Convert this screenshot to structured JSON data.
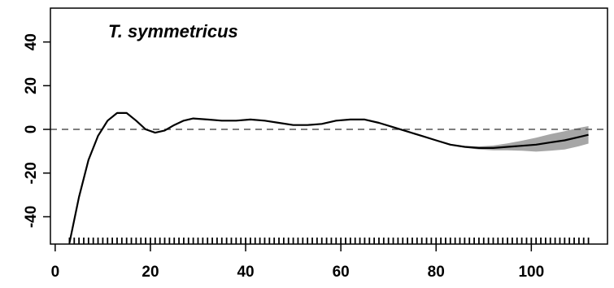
{
  "chart_data": {
    "type": "line",
    "title": "T. symmetricus",
    "xlabel": "",
    "ylabel": "",
    "xlim": [
      -1,
      116
    ],
    "ylim": [
      -52.5,
      55.5
    ],
    "x_ticks": [
      0,
      20,
      40,
      60,
      80,
      100
    ],
    "y_ticks": [
      -40,
      -20,
      0,
      20,
      40
    ],
    "reference_line": {
      "y": 0,
      "style": "dashed"
    },
    "grid": false,
    "colors": {
      "line": "#000000",
      "band": "#a6a6a6",
      "reference": "#555555"
    },
    "series": [
      {
        "x": [
          3,
          5,
          7,
          9,
          11,
          13,
          15,
          17,
          19,
          21,
          23,
          25,
          27,
          29,
          32,
          35,
          38,
          41,
          44,
          47,
          50,
          53,
          56,
          59,
          62,
          65,
          68,
          71,
          74,
          77,
          80,
          83,
          86,
          89,
          92,
          95,
          98,
          101,
          104,
          107,
          110,
          112
        ],
        "y": [
          -52,
          -31,
          -14,
          -3,
          4,
          7.5,
          7.5,
          4,
          0,
          -1.5,
          -0.5,
          2,
          4,
          5,
          4.5,
          4,
          4,
          4.5,
          4,
          3,
          2,
          2,
          2.5,
          4,
          4.5,
          4.5,
          3,
          1,
          -1,
          -3,
          -5,
          -7,
          -8,
          -8.5,
          -8.5,
          -8,
          -7.5,
          -7,
          -6,
          -5,
          -3.5,
          -2.5
        ],
        "band_upper": [
          -52,
          -31,
          -14,
          -3,
          4,
          7.5,
          7.5,
          4,
          0,
          -1.5,
          -0.5,
          2,
          4,
          5,
          4.5,
          4,
          4,
          4.5,
          4,
          3,
          2,
          2,
          2.5,
          4,
          4.5,
          4.5,
          3,
          1,
          -1,
          -3,
          -5,
          -6.8,
          -7.6,
          -7.8,
          -7.4,
          -6.4,
          -5.2,
          -3.8,
          -2.2,
          -0.8,
          0.7,
          1.5
        ],
        "band_lower": [
          -52,
          -31,
          -14,
          -3,
          4,
          7.5,
          7.5,
          4,
          0,
          -1.5,
          -0.5,
          2,
          4,
          5,
          4.5,
          4,
          4,
          4.5,
          4,
          3,
          2,
          2,
          2.5,
          4,
          4.5,
          4.5,
          3,
          1,
          -1,
          -3,
          -5,
          -7.2,
          -8.4,
          -9.2,
          -9.6,
          -9.6,
          -9.8,
          -10.2,
          -9.8,
          -9.2,
          -7.7,
          -6.5
        ]
      }
    ],
    "rug": [
      3,
      4,
      5,
      6,
      7,
      8,
      9,
      10,
      11,
      12,
      13,
      14,
      15,
      16,
      17,
      18,
      19,
      20,
      21,
      22,
      23,
      24,
      25,
      26,
      27,
      28,
      29,
      30,
      31,
      32,
      33,
      34,
      35,
      36,
      37,
      38,
      39,
      40,
      41,
      42,
      43,
      44,
      45,
      46,
      47,
      48,
      49,
      50,
      51,
      52,
      53,
      54,
      55,
      56,
      57,
      58,
      59,
      60,
      61,
      62,
      63,
      64,
      65,
      66,
      67,
      68,
      69,
      70,
      71,
      72,
      73,
      74,
      75,
      76,
      77,
      78,
      79,
      80,
      81,
      82,
      83,
      84,
      85,
      86,
      87,
      88,
      89,
      90,
      91,
      92,
      93,
      94,
      95,
      96,
      97,
      98,
      99,
      100,
      101,
      102,
      103,
      104,
      105,
      106,
      107,
      108,
      109,
      110,
      111,
      112
    ]
  }
}
